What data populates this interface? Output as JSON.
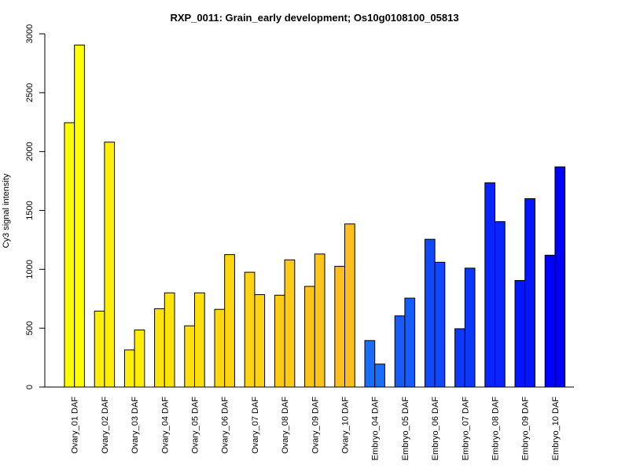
{
  "chart_data": {
    "type": "bar",
    "title": "RXP_0011: Grain_early development; Os10g0108100_05813",
    "xlabel": "",
    "ylabel": "Cy3 signal intensity",
    "ylim": [
      0,
      3000
    ],
    "yticks": [
      0,
      500,
      1000,
      1500,
      2000,
      2500,
      3000
    ],
    "grid": false,
    "legend": "none",
    "categories": [
      "Ovary_01 DAF",
      "Ovary_02 DAF",
      "Ovary_03 DAF",
      "Ovary_04 DAF",
      "Ovary_05 DAF",
      "Ovary_06 DAF",
      "Ovary_07 DAF",
      "Ovary_08 DAF",
      "Ovary_09 DAF",
      "Ovary_10 DAF",
      "Embryo_04 DAF",
      "Embryo_05 DAF",
      "Embryo_06 DAF",
      "Embryo_07 DAF",
      "Embryo_08 DAF",
      "Embryo_09 DAF",
      "Embryo_10 DAF"
    ],
    "series": [
      {
        "values": [
          2245,
          645,
          315,
          665,
          520,
          660,
          975,
          780,
          855,
          1025,
          395,
          605,
          1255,
          495,
          1735,
          905,
          1120
        ]
      },
      {
        "values": [
          2905,
          2080,
          485,
          800,
          800,
          1125,
          785,
          1080,
          1130,
          1385,
          195,
          755,
          1060,
          1010,
          1405,
          1600,
          1870
        ]
      }
    ],
    "colors": [
      "#ffff00",
      "#ffef08",
      "#ffee0a",
      "#fee40b",
      "#fedf0e",
      "#fed711",
      "#fdd313",
      "#fdcb16",
      "#fdc519",
      "#fcbf1d",
      "#1a6cfb",
      "#165cfb",
      "#1248fc",
      "#0c38fc",
      "#0924fd",
      "#0416fe",
      "#0000ff"
    ]
  }
}
